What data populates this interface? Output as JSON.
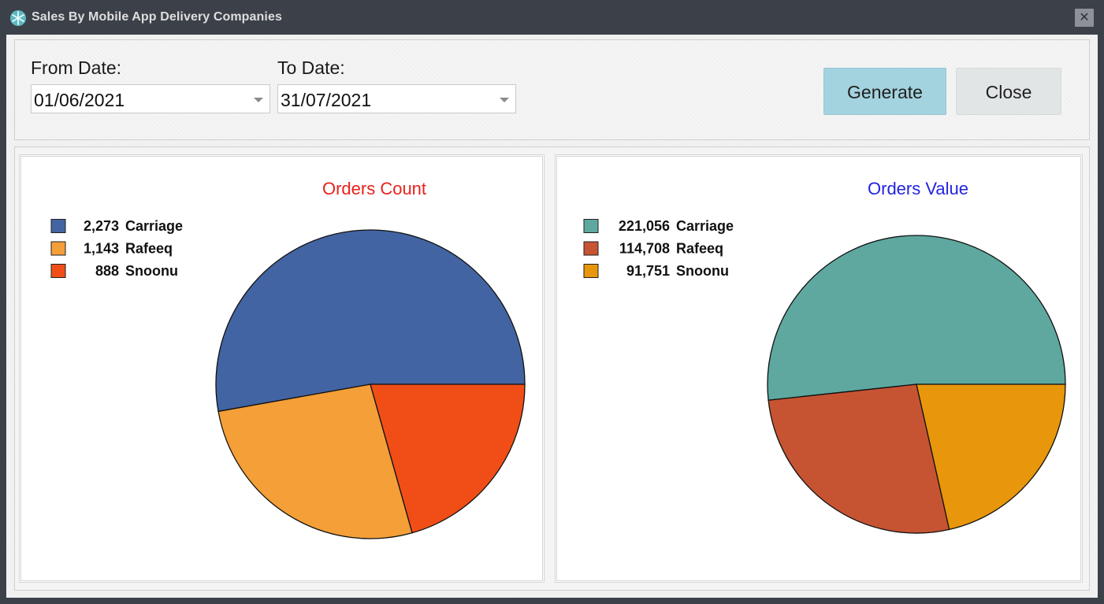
{
  "window": {
    "title": "Sales By Mobile App Delivery Companies",
    "close_glyph": "✕",
    "icon": "snowflake-icon"
  },
  "filters": {
    "from_label": "From Date:",
    "from_value": "01/06/2021",
    "to_label": "To Date:",
    "to_value": "31/07/2021"
  },
  "buttons": {
    "generate": "Generate",
    "close": "Close"
  },
  "chart_data": [
    {
      "type": "pie",
      "title": "Orders Count",
      "title_color": "#e8211b",
      "legend_position": "top-left",
      "categories": [
        "Carriage",
        "Rafeeq",
        "Snoonu"
      ],
      "values": [
        2273,
        1143,
        888
      ],
      "value_labels": [
        "2,273",
        "1,143",
        "888"
      ],
      "colors": [
        "#4364a2",
        "#f49f38",
        "#f14e17"
      ]
    },
    {
      "type": "pie",
      "title": "Orders Value",
      "title_color": "#2222e0",
      "legend_position": "top-left",
      "categories": [
        "Carriage",
        "Rafeeq",
        "Snoonu"
      ],
      "values": [
        221056,
        114708,
        91751
      ],
      "value_labels": [
        "221,056",
        "114,708",
        "91,751"
      ],
      "colors": [
        "#5ea8a0",
        "#c65433",
        "#e8960b"
      ]
    }
  ]
}
